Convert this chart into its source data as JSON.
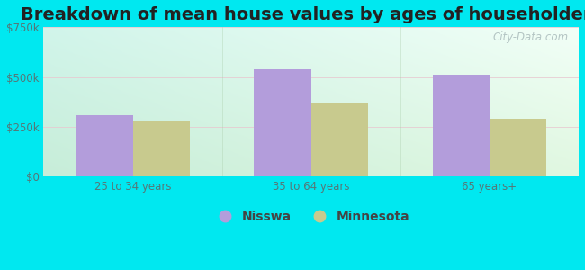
{
  "title": "Breakdown of mean house values by ages of householders",
  "categories": [
    "25 to 34 years",
    "35 to 64 years",
    "65 years+"
  ],
  "nisswa_values": [
    310000,
    540000,
    510000
  ],
  "minnesota_values": [
    280000,
    370000,
    290000
  ],
  "nisswa_color": "#b39ddb",
  "minnesota_color": "#c8ca8e",
  "ylim": [
    0,
    750000
  ],
  "yticks": [
    0,
    250000,
    500000,
    750000
  ],
  "ytick_labels": [
    "$0",
    "$250k",
    "$500k",
    "$750k"
  ],
  "legend_labels": [
    "Nisswa",
    "Minnesota"
  ],
  "background_outer": "#00e8f0",
  "watermark": "City-Data.com",
  "bar_width": 0.32,
  "title_fontsize": 14,
  "tick_fontsize": 8.5,
  "legend_fontsize": 10,
  "tick_color": "#557777"
}
